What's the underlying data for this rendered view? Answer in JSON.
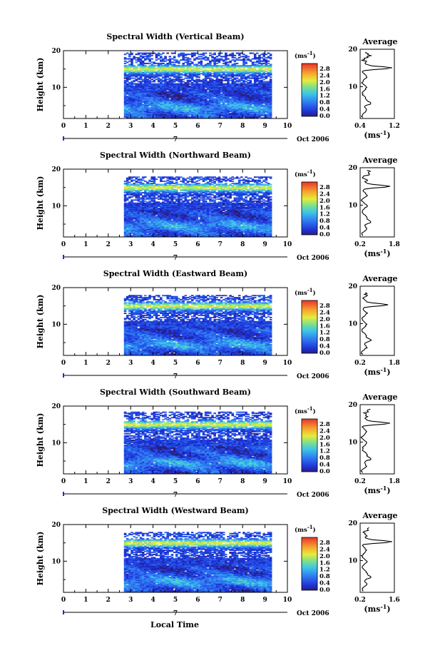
{
  "figure": {
    "xlabel": "Local Time",
    "date_label": "Oct 2006",
    "day_label": "7",
    "ylabel": "Height (km)",
    "unit_label": "(ms",
    "unit_exp": "-1",
    "unit_close": ")",
    "avg_title": "Average",
    "colorbar_ticks": [
      "0.0",
      "0.4",
      "0.8",
      "1.2",
      "1.6",
      "2.0",
      "2.4",
      "2.8"
    ]
  },
  "chart_data": [
    {
      "type": "heatmap",
      "title": "Spectral Width (Vertical Beam)",
      "x_ticks": [
        "0",
        "1",
        "2",
        "3",
        "4",
        "5",
        "6",
        "7",
        "8",
        "9",
        "10"
      ],
      "xlim": [
        0,
        10
      ],
      "y_ticks": [
        "10",
        "20"
      ],
      "ylim": [
        1.5,
        20
      ],
      "data_start_hour": 2.7,
      "data_end_hour": 9.3,
      "data_top_km": 19.5,
      "colorbar_range": [
        0.0,
        2.8
      ],
      "profile": {
        "xlim": [
          0.4,
          1.2
        ],
        "x_ticks": [
          "0.4",
          "1.2"
        ],
        "peak_km": 15,
        "peak_value": 1.15,
        "top_km": 19.5
      }
    },
    {
      "type": "heatmap",
      "title": "Spectral Width (Northward Beam)",
      "x_ticks": [
        "0",
        "1",
        "2",
        "3",
        "4",
        "5",
        "6",
        "7",
        "8",
        "9",
        "10"
      ],
      "xlim": [
        0,
        10
      ],
      "y_ticks": [
        "10",
        "20"
      ],
      "ylim": [
        1.5,
        20
      ],
      "data_start_hour": 2.7,
      "data_end_hour": 9.3,
      "data_top_km": 18.0,
      "colorbar_range": [
        0.0,
        2.8
      ],
      "profile": {
        "xlim": [
          0.2,
          1.8
        ],
        "x_ticks": [
          "0.2",
          "1.8"
        ],
        "peak_km": 15,
        "peak_value": 1.6,
        "top_km": 19.5
      }
    },
    {
      "type": "heatmap",
      "title": "Spectral Width (Eastward Beam)",
      "x_ticks": [
        "0",
        "1",
        "2",
        "3",
        "4",
        "5",
        "6",
        "7",
        "8",
        "9",
        "10"
      ],
      "xlim": [
        0,
        10
      ],
      "y_ticks": [
        "10",
        "20"
      ],
      "ylim": [
        1.5,
        20
      ],
      "data_start_hour": 2.7,
      "data_end_hour": 9.3,
      "data_top_km": 18.0,
      "colorbar_range": [
        0.0,
        2.8
      ],
      "profile": {
        "xlim": [
          0.2,
          1.8
        ],
        "x_ticks": [
          "0.2",
          "1.8"
        ],
        "peak_km": 15,
        "peak_value": 1.5,
        "top_km": 18.5
      }
    },
    {
      "type": "heatmap",
      "title": "Spectral Width (Southward Beam)",
      "x_ticks": [
        "0",
        "1",
        "2",
        "3",
        "4",
        "5",
        "6",
        "7",
        "8",
        "9",
        "10"
      ],
      "xlim": [
        0,
        10
      ],
      "y_ticks": [
        "10",
        "20"
      ],
      "ylim": [
        1.5,
        20
      ],
      "data_start_hour": 2.7,
      "data_end_hour": 9.3,
      "data_top_km": 18.5,
      "colorbar_range": [
        0.0,
        2.8
      ],
      "profile": {
        "xlim": [
          0.2,
          1.8
        ],
        "x_ticks": [
          "0.2",
          "1.8"
        ],
        "peak_km": 15,
        "peak_value": 1.6,
        "top_km": 19
      }
    },
    {
      "type": "heatmap",
      "title": "Spectral Width (Westward Beam)",
      "x_ticks": [
        "0",
        "1",
        "2",
        "3",
        "4",
        "5",
        "6",
        "7",
        "8",
        "9",
        "10"
      ],
      "xlim": [
        0,
        10
      ],
      "y_ticks": [
        "10",
        "20"
      ],
      "ylim": [
        1.5,
        20
      ],
      "data_start_hour": 2.7,
      "data_end_hour": 9.3,
      "data_top_km": 18.0,
      "colorbar_range": [
        0.0,
        2.8
      ],
      "profile": {
        "xlim": [
          0.2,
          1.6
        ],
        "x_ticks": [
          "0.2",
          "1.6"
        ],
        "peak_km": 15,
        "peak_value": 1.5,
        "top_km": 19
      }
    }
  ]
}
